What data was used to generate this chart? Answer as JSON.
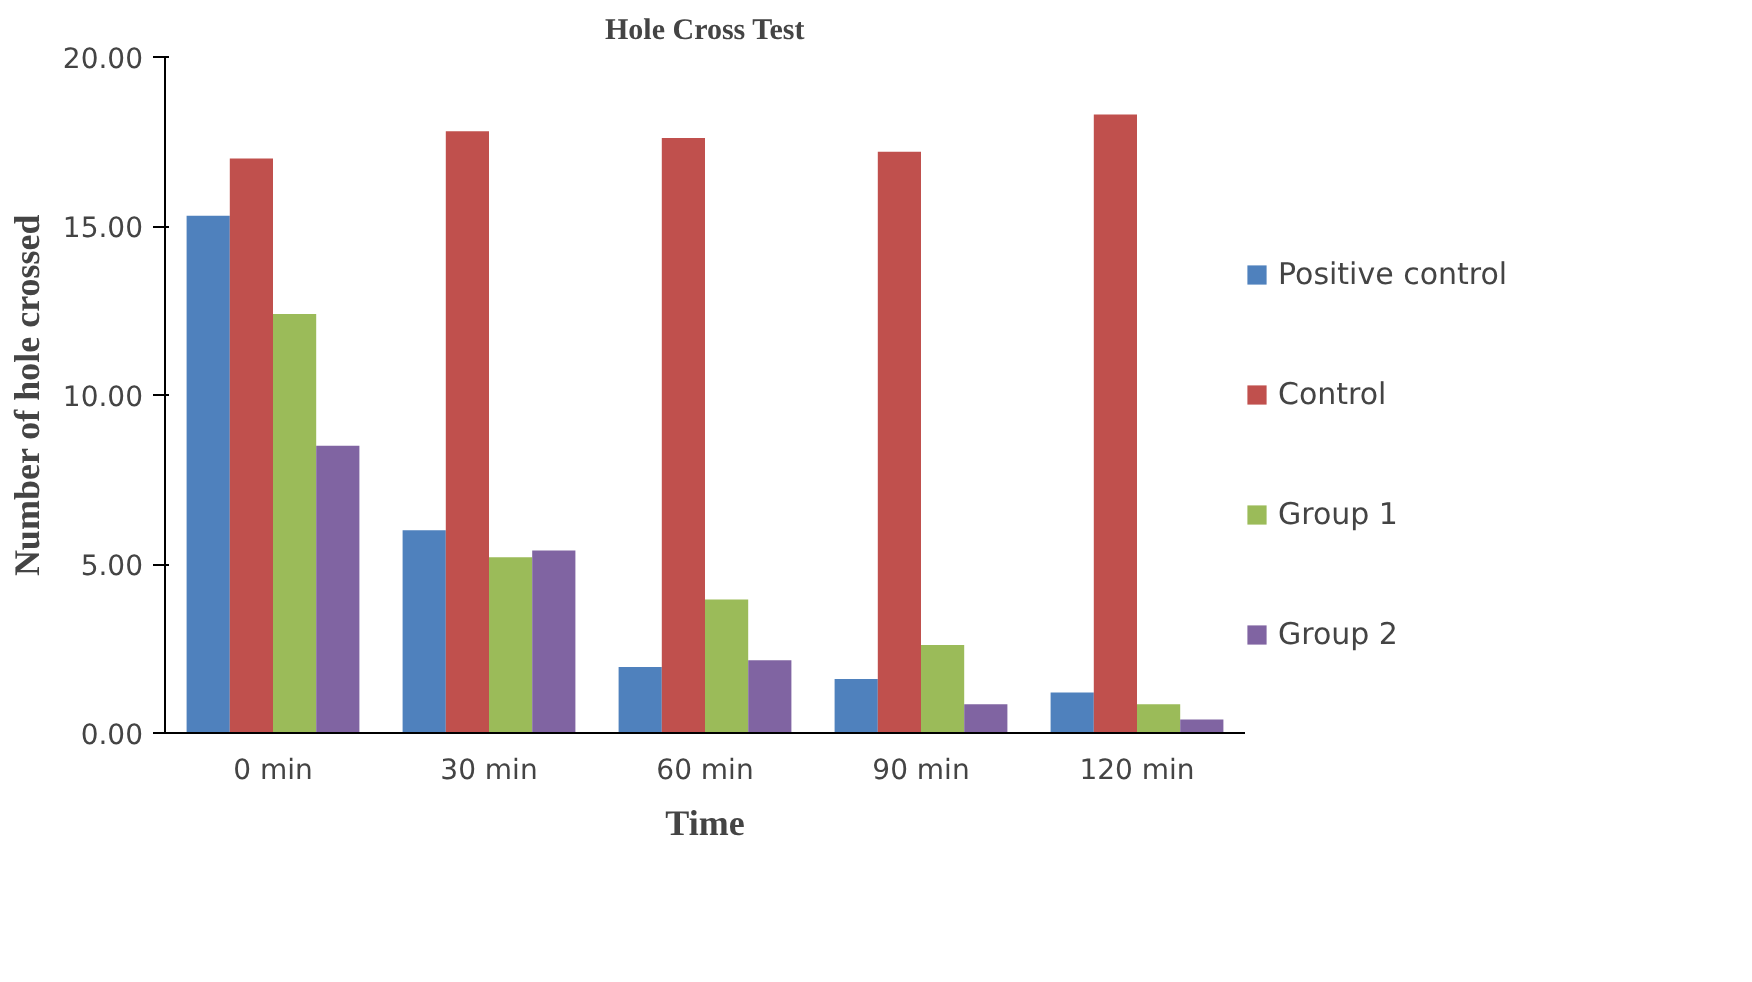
{
  "chart_data": {
    "type": "bar",
    "title": "Hole Cross Test",
    "xlabel": "Time",
    "ylabel": "Number of hole crossed",
    "categories": [
      "0 min",
      "30 min",
      "60 min",
      "90 min",
      "120 min"
    ],
    "series": [
      {
        "name": "Positive control",
        "color": "#4f81bd",
        "values": [
          15.3,
          6.0,
          1.95,
          1.6,
          1.2
        ]
      },
      {
        "name": "Control",
        "color": "#c0504d",
        "values": [
          17.0,
          17.8,
          17.6,
          17.2,
          18.3
        ]
      },
      {
        "name": "Group 1",
        "color": "#9bbb59",
        "values": [
          12.4,
          5.2,
          3.95,
          2.6,
          0.85
        ]
      },
      {
        "name": "Group 2",
        "color": "#8064a2",
        "values": [
          8.5,
          5.4,
          2.15,
          0.85,
          0.4
        ]
      }
    ],
    "ylim": [
      0,
      20
    ],
    "yticks": [
      {
        "value": 0,
        "label": "0.00"
      },
      {
        "value": 5,
        "label": "5.00"
      },
      {
        "value": 10,
        "label": "10.00"
      },
      {
        "value": 15,
        "label": "15.00"
      },
      {
        "value": 20,
        "label": "20.00"
      }
    ],
    "grid": false,
    "legend": "right"
  }
}
